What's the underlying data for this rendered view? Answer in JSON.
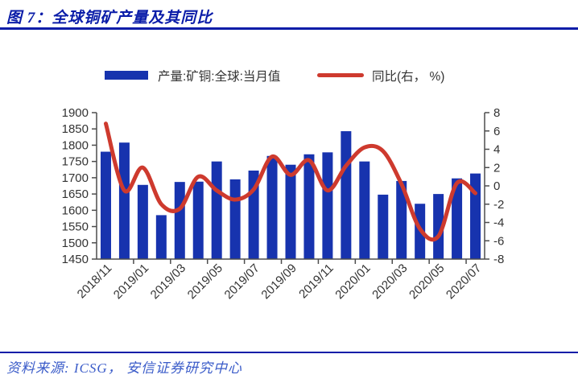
{
  "header": {
    "title": "图 7：全球铜矿产量及其同比"
  },
  "legend": {
    "bar_label": "产量:矿铜:全球:当月值",
    "line_label": "同比(右， %)"
  },
  "colors": {
    "bar": "#1733ae",
    "line": "#ce3a2e",
    "navy": "#0a1ca8",
    "axis_text": "#333333",
    "axis_line": "#4d4d4d",
    "footer_text": "#3b5cc9"
  },
  "chart_data": {
    "type": "combo",
    "subtypes": [
      "bar",
      "line"
    ],
    "title": "全球铜矿产量及其同比",
    "categories": [
      "2018/11",
      "2018/12",
      "2019/01",
      "2019/02",
      "2019/03",
      "2019/04",
      "2019/05",
      "2019/06",
      "2019/07",
      "2019/08",
      "2019/09",
      "2019/10",
      "2019/11",
      "2019/12",
      "2020/01",
      "2020/02",
      "2020/03",
      "2020/04",
      "2020/05",
      "2020/06",
      "2020/07"
    ],
    "x_tick_labels": [
      "2018/11",
      "2019/01",
      "2019/03",
      "2019/05",
      "2019/07",
      "2019/09",
      "2019/11",
      "2020/01",
      "2020/03",
      "2020/05",
      "2020/07"
    ],
    "series": [
      {
        "name": "产量:矿铜:全球:当月值",
        "type": "bar",
        "axis": "left",
        "values": [
          1780,
          1808,
          1678,
          1585,
          1687,
          1688,
          1750,
          1695,
          1722,
          1767,
          1740,
          1772,
          1778,
          1843,
          1750,
          1648,
          1690,
          1620,
          1650,
          1698,
          1713
        ]
      },
      {
        "name": "同比(右， %)",
        "type": "line",
        "axis": "right",
        "values": [
          6.8,
          -0.5,
          2.0,
          -2.0,
          -2.5,
          1.0,
          -0.5,
          -1.5,
          -0.4,
          3.2,
          1.2,
          2.8,
          -0.5,
          2.2,
          4.2,
          3.8,
          0.2,
          -4.7,
          -5.5,
          0.3,
          -0.8
        ]
      }
    ],
    "left_axis": {
      "min": 1450,
      "max": 1900,
      "step": 50,
      "ticks": [
        "1900",
        "1850",
        "1800",
        "1750",
        "1700",
        "1650",
        "1600",
        "1550",
        "1500",
        "1450"
      ]
    },
    "right_axis": {
      "min": -8,
      "max": 8,
      "step": 2,
      "ticks": [
        "8",
        "6",
        "4",
        "2",
        "0",
        "-2",
        "-4",
        "-6",
        "-8"
      ]
    },
    "grid": false,
    "legend_position": "top"
  },
  "footer": {
    "source": "资料来源: ICSG， 安信证券研究中心"
  }
}
